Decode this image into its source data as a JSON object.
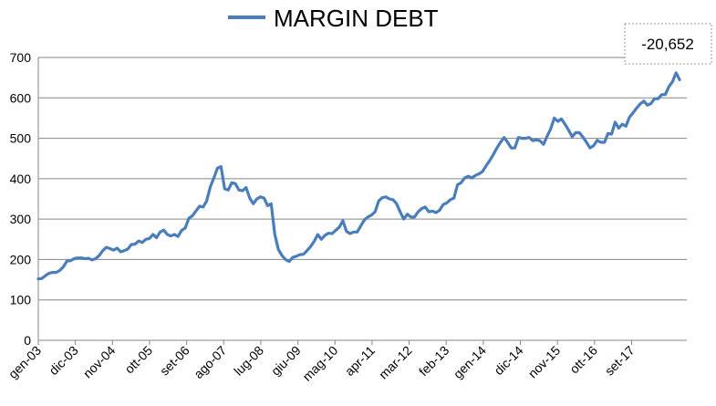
{
  "chart_data": {
    "type": "line",
    "legend": {
      "label": "MARGIN DEBT",
      "placement": "top-center"
    },
    "series": [
      {
        "name": "MARGIN DEBT",
        "color": "#4a7ebb",
        "points": [
          [
            0,
            152
          ],
          [
            2,
            153
          ],
          [
            4,
            160
          ],
          [
            6,
            166
          ],
          [
            8,
            168
          ],
          [
            10,
            168
          ],
          [
            12,
            173
          ],
          [
            14,
            182
          ],
          [
            16,
            196
          ],
          [
            18,
            197
          ],
          [
            20,
            202
          ],
          [
            22,
            204
          ],
          [
            24,
            204
          ],
          [
            26,
            202
          ],
          [
            28,
            203
          ],
          [
            30,
            199
          ],
          [
            32,
            202
          ],
          [
            34,
            210
          ],
          [
            36,
            222
          ],
          [
            38,
            230
          ],
          [
            40,
            227
          ],
          [
            42,
            223
          ],
          [
            44,
            228
          ],
          [
            46,
            219
          ],
          [
            48,
            222
          ],
          [
            50,
            226
          ],
          [
            52,
            237
          ],
          [
            54,
            238
          ],
          [
            56,
            246
          ],
          [
            58,
            242
          ],
          [
            60,
            250
          ],
          [
            62,
            252
          ],
          [
            64,
            262
          ],
          [
            66,
            254
          ],
          [
            68,
            268
          ],
          [
            70,
            273
          ],
          [
            72,
            262
          ],
          [
            74,
            258
          ],
          [
            76,
            262
          ],
          [
            78,
            257
          ],
          [
            80,
            272
          ],
          [
            82,
            278
          ],
          [
            84,
            302
          ],
          [
            86,
            308
          ],
          [
            88,
            320
          ],
          [
            90,
            332
          ],
          [
            92,
            330
          ],
          [
            94,
            345
          ],
          [
            96,
            380
          ],
          [
            98,
            402
          ],
          [
            100,
            426
          ],
          [
            102,
            430
          ],
          [
            104,
            375
          ],
          [
            106,
            372
          ],
          [
            108,
            390
          ],
          [
            110,
            388
          ],
          [
            112,
            372
          ],
          [
            114,
            370
          ],
          [
            116,
            378
          ],
          [
            118,
            352
          ],
          [
            120,
            338
          ],
          [
            122,
            350
          ],
          [
            124,
            355
          ],
          [
            126,
            352
          ],
          [
            128,
            333
          ],
          [
            130,
            338
          ],
          [
            132,
            262
          ],
          [
            134,
            225
          ],
          [
            136,
            210
          ],
          [
            138,
            200
          ],
          [
            140,
            195
          ],
          [
            142,
            205
          ],
          [
            144,
            208
          ],
          [
            146,
            212
          ],
          [
            148,
            213
          ],
          [
            150,
            222
          ],
          [
            152,
            232
          ],
          [
            154,
            245
          ],
          [
            156,
            262
          ],
          [
            158,
            250
          ],
          [
            160,
            260
          ],
          [
            162,
            265
          ],
          [
            164,
            264
          ],
          [
            166,
            272
          ],
          [
            168,
            280
          ],
          [
            170,
            296
          ],
          [
            172,
            270
          ],
          [
            174,
            264
          ],
          [
            176,
            268
          ],
          [
            178,
            268
          ],
          [
            180,
            283
          ],
          [
            182,
            298
          ],
          [
            184,
            305
          ],
          [
            186,
            310
          ],
          [
            188,
            318
          ],
          [
            190,
            345
          ],
          [
            192,
            353
          ],
          [
            194,
            355
          ],
          [
            196,
            350
          ],
          [
            198,
            348
          ],
          [
            200,
            338
          ],
          [
            202,
            318
          ],
          [
            204,
            300
          ],
          [
            206,
            312
          ],
          [
            208,
            305
          ],
          [
            210,
            305
          ],
          [
            212,
            318
          ],
          [
            214,
            326
          ],
          [
            216,
            330
          ],
          [
            218,
            318
          ],
          [
            220,
            320
          ],
          [
            222,
            316
          ],
          [
            224,
            322
          ],
          [
            226,
            336
          ],
          [
            228,
            340
          ],
          [
            230,
            348
          ],
          [
            232,
            352
          ],
          [
            234,
            385
          ],
          [
            236,
            390
          ],
          [
            238,
            402
          ],
          [
            240,
            406
          ],
          [
            242,
            402
          ],
          [
            244,
            408
          ],
          [
            246,
            412
          ],
          [
            248,
            418
          ],
          [
            250,
            432
          ],
          [
            252,
            445
          ],
          [
            254,
            460
          ],
          [
            256,
            476
          ],
          [
            258,
            490
          ],
          [
            260,
            502
          ],
          [
            262,
            490
          ],
          [
            264,
            476
          ],
          [
            266,
            476
          ],
          [
            268,
            502
          ],
          [
            270,
            500
          ],
          [
            272,
            500
          ],
          [
            274,
            502
          ],
          [
            276,
            494
          ],
          [
            278,
            496
          ],
          [
            280,
            494
          ],
          [
            282,
            485
          ],
          [
            284,
            505
          ],
          [
            286,
            523
          ],
          [
            288,
            550
          ],
          [
            290,
            542
          ],
          [
            292,
            548
          ],
          [
            294,
            535
          ],
          [
            296,
            520
          ],
          [
            298,
            504
          ],
          [
            300,
            514
          ],
          [
            302,
            514
          ],
          [
            304,
            503
          ],
          [
            306,
            490
          ],
          [
            308,
            476
          ],
          [
            310,
            482
          ],
          [
            312,
            495
          ],
          [
            314,
            490
          ],
          [
            316,
            490
          ],
          [
            318,
            512
          ],
          [
            320,
            510
          ],
          [
            322,
            540
          ],
          [
            324,
            525
          ],
          [
            326,
            535
          ],
          [
            328,
            530
          ],
          [
            330,
            552
          ],
          [
            332,
            563
          ],
          [
            334,
            575
          ],
          [
            336,
            585
          ],
          [
            338,
            592
          ],
          [
            340,
            582
          ],
          [
            342,
            586
          ],
          [
            344,
            598
          ],
          [
            346,
            598
          ],
          [
            348,
            608
          ],
          [
            350,
            608
          ],
          [
            352,
            628
          ],
          [
            354,
            640
          ],
          [
            356,
            662
          ],
          [
            358,
            645
          ]
        ]
      }
    ],
    "x_tick_labels": [
      "gen-03",
      "dic-03",
      "nov-04",
      "ott-05",
      "set-06",
      "ago-07",
      "lug-08",
      "giu-09",
      "mag-10",
      "apr-11",
      "mar-12",
      "feb-13",
      "gen-14",
      "dic-14",
      "nov-15",
      "ott-16",
      "set-17"
    ],
    "x_tick_month_index": [
      0,
      20.7,
      41.4,
      62.1,
      82.8,
      103.5,
      124.2,
      144.9,
      165.6,
      186.3,
      207,
      227.7,
      248.4,
      269.1,
      289.8,
      310.5,
      331.2
    ],
    "x_domain": [
      0,
      362
    ],
    "yticks": [
      0,
      100,
      200,
      300,
      400,
      500,
      600,
      700
    ],
    "ylim": [
      0,
      700
    ],
    "grid": {
      "horizontal": true,
      "vertical": false
    },
    "annotation": {
      "text": "-20,652",
      "anchor_index": 358
    }
  }
}
